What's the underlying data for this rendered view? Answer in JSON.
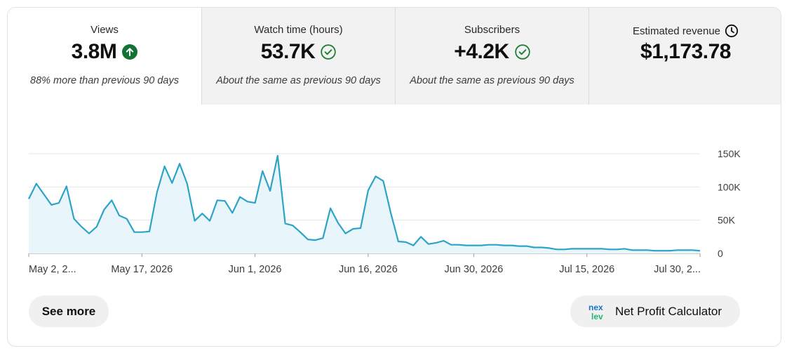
{
  "tabs": [
    {
      "title": "Views",
      "value": "3.8M",
      "sub": "88% more than previous 90 days",
      "status_icon": "arrow-up-circle-icon"
    },
    {
      "title": "Watch time (hours)",
      "value": "53.7K",
      "sub": "About the same as previous 90 days",
      "status_icon": "check-circle-icon"
    },
    {
      "title": "Subscribers",
      "value": "+4.2K",
      "sub": "About the same as previous 90 days",
      "status_icon": "check-circle-icon"
    },
    {
      "title": "Estimated revenue",
      "value": "$1,173.78",
      "sub": "",
      "status_icon": "clock-icon"
    }
  ],
  "colors": {
    "line": "#2da4c7",
    "fill": "#e8f5fb",
    "positive": "#137333",
    "check": "#1e7e34"
  },
  "chart_data": {
    "type": "area",
    "series": [
      {
        "values": [
          82000,
          105000,
          89000,
          73000,
          76000,
          101000,
          52000,
          40000,
          30000,
          40000,
          66000,
          80000,
          57000,
          52000,
          32000,
          32000,
          33000,
          92000,
          131000,
          106000,
          135000,
          105000,
          49000,
          60000,
          49000,
          80000,
          79000,
          61000,
          85000,
          78000,
          76000,
          124000,
          94000,
          147000,
          45000,
          42000,
          32000,
          21000,
          20000,
          23000,
          68000,
          46000,
          30000,
          37000,
          38000,
          95000,
          116000,
          109000,
          61000,
          18000,
          17000,
          12000,
          25000,
          14000,
          16000,
          19000,
          13000,
          13000,
          12000,
          12000,
          12000,
          13000,
          13000,
          12000,
          12000,
          11000,
          11000,
          9000,
          9000,
          8000,
          6000,
          6000,
          7000,
          7000,
          7000,
          7000,
          7000,
          6000,
          6000,
          7000,
          5000,
          5000,
          5000,
          4000,
          4000,
          4000,
          5000,
          5000,
          5000,
          4000
        ]
      }
    ],
    "x_tick_labels": [
      "May 2, 2...",
      "May 17, 2026",
      "Jun 1, 2026",
      "Jun 16, 2026",
      "Jun 30, 2026",
      "Jul 15, 2026",
      "Jul 30, 2..."
    ],
    "x_tick_index": [
      0,
      15,
      30,
      45,
      59,
      74,
      89
    ],
    "y_tick_labels": [
      "0",
      "50K",
      "100K",
      "150K"
    ],
    "y_tick_values": [
      0,
      50000,
      100000,
      150000
    ],
    "ylim": [
      0,
      150000
    ],
    "grid": true
  },
  "buttons": {
    "see_more": "See more",
    "calculator": "Net Profit Calculator"
  },
  "logo_text": "nex lev"
}
